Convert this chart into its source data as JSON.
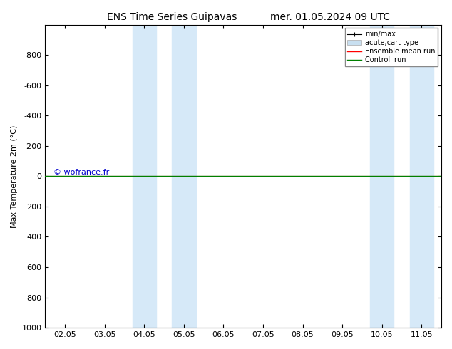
{
  "title_left": "ENS Time Series Guipavas",
  "title_right": "mer. 01.05.2024 09 UTC",
  "ylabel": "Max Temperature 2m (°C)",
  "ylim_bottom": -1000,
  "ylim_top": 1000,
  "yticks": [
    -800,
    -600,
    -400,
    -200,
    0,
    200,
    400,
    600,
    800,
    1000
  ],
  "xtick_labels": [
    "02.05",
    "03.05",
    "04.05",
    "05.05",
    "06.05",
    "07.05",
    "08.05",
    "09.05",
    "10.05",
    "11.05"
  ],
  "xtick_positions": [
    0,
    1,
    2,
    3,
    4,
    5,
    6,
    7,
    8,
    9
  ],
  "shaded_regions": [
    [
      1.7,
      2.3
    ],
    [
      2.7,
      3.3
    ],
    [
      7.7,
      8.3
    ],
    [
      8.7,
      9.3
    ]
  ],
  "shaded_color": "#d6e9f8",
  "control_run_y": 0,
  "ensemble_mean_y": 0,
  "control_run_color": "#008000",
  "ensemble_mean_color": "#ff0000",
  "watermark": "© wofrance.fr",
  "watermark_color": "#0000cc",
  "legend_entries": [
    "min/max",
    "acute;cart type",
    "Ensemble mean run",
    "Controll run"
  ],
  "legend_colors": [
    "#000000",
    "#c8dff0",
    "#ff0000",
    "#008000"
  ],
  "background_color": "#ffffff",
  "plot_bg_color": "#ffffff",
  "title_fontsize": 10,
  "axis_fontsize": 8,
  "tick_fontsize": 8
}
